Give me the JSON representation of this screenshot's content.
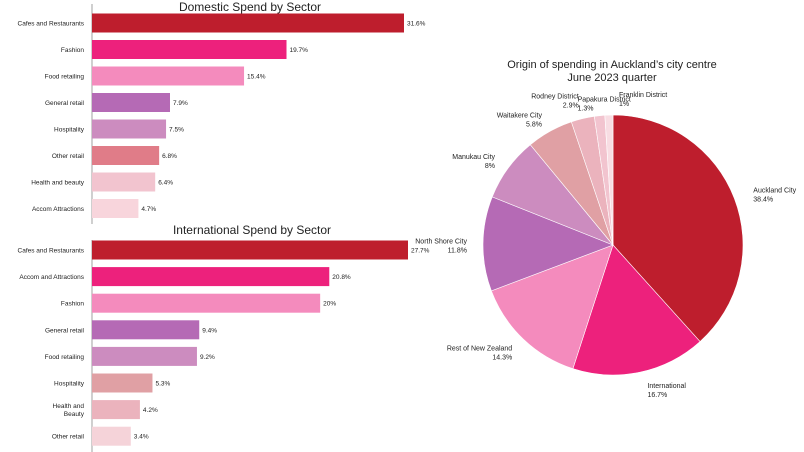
{
  "chart_data": [
    {
      "type": "bar",
      "orientation": "horizontal",
      "title": "Domestic Spend by Sector",
      "categories": [
        "Cafes and Restaurants",
        "Fashion",
        "Food retailing",
        "General retail",
        "Hospitality",
        "Other retail",
        "Health and beauty",
        "Accom Attractions"
      ],
      "values": [
        31.6,
        19.7,
        15.4,
        7.9,
        7.5,
        6.8,
        6.4,
        4.7
      ],
      "value_labels": [
        "31.6%",
        "19.7%",
        "15.4%",
        "7.9%",
        "7.5%",
        "6.8%",
        "6.4%",
        "4.7%"
      ],
      "colors": [
        "#be1e2d",
        "#ed217c",
        "#f48bbd",
        "#b56ab5",
        "#cc8cbf",
        "#e07c88",
        "#f2c4cf",
        "#f8d5dc"
      ],
      "xlim": [
        0,
        31.6
      ]
    },
    {
      "type": "bar",
      "orientation": "horizontal",
      "title": "International Spend by Sector",
      "categories": [
        "Cafes and Restaurants",
        "Accom and Attractions",
        "Fashion",
        "General retail",
        "Food retailing",
        "Hospitality",
        "Health and Beauty",
        "Other retail"
      ],
      "category_lines": [
        [
          "Cafes and Restaurants"
        ],
        [
          "Accom and Attractions"
        ],
        [
          "Fashion"
        ],
        [
          "General retail"
        ],
        [
          "Food retailing"
        ],
        [
          "Hospitality"
        ],
        [
          "Health and",
          "Beauty"
        ],
        [
          "Other retail"
        ]
      ],
      "values": [
        27.7,
        20.8,
        20,
        9.4,
        9.2,
        5.3,
        4.2,
        3.4
      ],
      "value_labels": [
        "27.7%",
        "20.8%",
        "20%",
        "9.4%",
        "9.2%",
        "5.3%",
        "4.2%",
        "3.4%"
      ],
      "colors": [
        "#be1e2d",
        "#ed217c",
        "#f48bbd",
        "#b56ab5",
        "#cc8cbf",
        "#e0a0a4",
        "#ebb3bd",
        "#f5d3d9"
      ],
      "xlim": [
        0,
        27.7
      ]
    },
    {
      "type": "pie",
      "title_lines": [
        "Origin of spending in Auckland’s city centre",
        "June 2023 quarter"
      ],
      "slices": [
        {
          "label": "Auckland City",
          "value": 38.4,
          "value_label": "38.4%",
          "color": "#be1e2d"
        },
        {
          "label": "International",
          "value": 16.7,
          "value_label": "16.7%",
          "color": "#ed217c"
        },
        {
          "label": "Rest of New Zealand",
          "value": 14.3,
          "value_label": "14.3%",
          "color": "#f48bbd"
        },
        {
          "label": "North Shore City",
          "value": 11.8,
          "value_label": "11.8%",
          "color": "#b56ab5"
        },
        {
          "label": "Manukau City",
          "value": 8,
          "value_label": "8%",
          "color": "#cc8cbf"
        },
        {
          "label": "Waitakere City",
          "value": 5.8,
          "value_label": "5.8%",
          "color": "#e0a0a4"
        },
        {
          "label": "Rodney District",
          "value": 2.9,
          "value_label": "2.9%",
          "color": "#ebb3bd"
        },
        {
          "label": "Papakura District",
          "value": 1.3,
          "value_label": "1.3%",
          "color": "#f2c4cf"
        },
        {
          "label": "Franklin District",
          "value": 1,
          "value_label": "1%",
          "color": "#f8dde3"
        }
      ]
    }
  ]
}
